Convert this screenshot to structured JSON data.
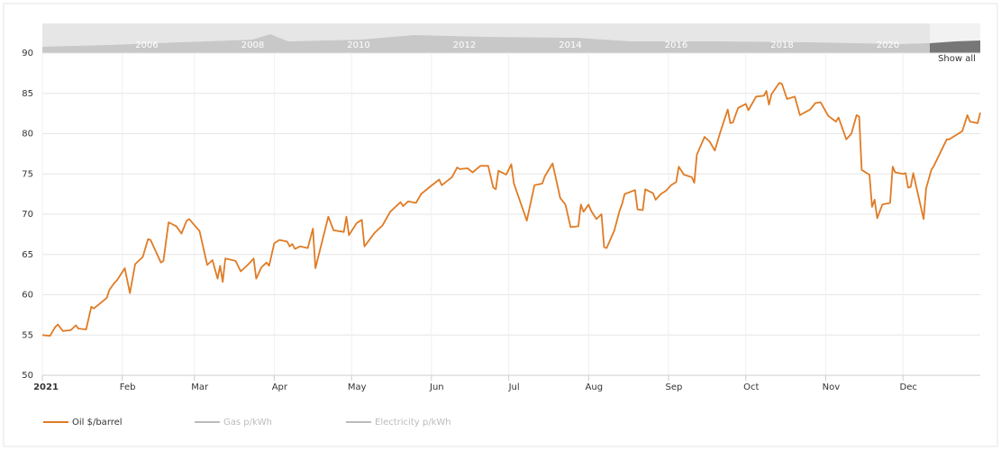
{
  "chart_data": {
    "type": "line",
    "navigator": {
      "labels": [
        "2006",
        "2008",
        "2010",
        "2012",
        "2014",
        "2016",
        "2018",
        "2020"
      ],
      "button": "Show all"
    },
    "xlim": [
      0,
      364
    ],
    "xticks": [
      {
        "value": 0,
        "label": "2021"
      },
      {
        "value": 31,
        "label": "Feb"
      },
      {
        "value": 59,
        "label": "Mar"
      },
      {
        "value": 90,
        "label": "Apr"
      },
      {
        "value": 120,
        "label": "May"
      },
      {
        "value": 151,
        "label": "Jun"
      },
      {
        "value": 181,
        "label": "Jul"
      },
      {
        "value": 212,
        "label": "Aug"
      },
      {
        "value": 243,
        "label": "Sep"
      },
      {
        "value": 273,
        "label": "Oct"
      },
      {
        "value": 304,
        "label": "Nov"
      },
      {
        "value": 334,
        "label": "Dec"
      }
    ],
    "ylim": [
      50,
      90
    ],
    "yticks": [
      50,
      55,
      60,
      65,
      70,
      75,
      80,
      85,
      90
    ],
    "grid": true,
    "x": [
      0,
      3,
      5,
      6,
      8,
      11,
      13,
      14,
      17,
      19,
      20,
      25,
      26,
      28,
      29,
      32,
      34,
      36,
      39,
      41,
      42,
      46,
      47,
      49,
      52,
      54,
      56,
      57,
      61,
      64,
      66,
      68,
      69,
      70,
      71,
      75,
      77,
      80,
      82,
      83,
      85,
      87,
      88,
      90,
      92,
      95,
      96,
      97,
      98,
      100,
      103,
      105,
      106,
      111,
      113,
      117,
      118,
      119,
      122,
      124,
      125,
      129,
      132,
      135,
      139,
      140,
      142,
      145,
      147,
      150,
      154,
      155,
      159,
      161,
      162,
      165,
      167,
      170,
      173,
      175,
      176,
      177,
      180,
      182,
      183,
      188,
      191,
      194,
      195,
      198,
      201,
      203,
      205,
      208,
      209,
      210,
      212,
      213,
      215,
      217,
      218,
      219,
      222,
      224,
      225,
      226,
      230,
      231,
      233,
      234,
      237,
      238,
      240,
      242,
      244,
      246,
      247,
      249,
      252,
      253,
      254,
      257,
      259,
      261,
      263,
      266,
      267,
      268,
      270,
      273,
      274,
      277,
      280,
      281,
      282,
      283,
      286,
      287,
      289,
      292,
      294,
      298,
      300,
      302,
      305,
      308,
      309,
      312,
      314,
      316,
      317,
      318,
      321,
      322,
      323,
      324,
      326,
      329,
      330,
      331,
      334,
      335,
      336,
      337,
      338,
      342,
      343,
      345,
      346,
      351,
      352,
      357,
      359,
      360,
      363,
      364
    ],
    "series": [
      {
        "name": "Oil $/barrel",
        "color": "#e07b24",
        "values": [
          55.0,
          54.9,
          56.0,
          56.3,
          55.5,
          55.6,
          56.2,
          55.8,
          55.7,
          58.5,
          58.3,
          59.6,
          60.6,
          61.5,
          61.8,
          63.3,
          60.2,
          63.8,
          64.7,
          66.9,
          66.8,
          64.0,
          64.2,
          69.0,
          68.5,
          67.6,
          69.2,
          69.4,
          67.9,
          63.7,
          64.3,
          62.0,
          63.6,
          61.6,
          64.5,
          64.2,
          62.9,
          63.8,
          64.5,
          62.0,
          63.4,
          64.0,
          63.6,
          66.4,
          66.8,
          66.6,
          66.0,
          66.3,
          65.7,
          66.0,
          65.8,
          68.2,
          63.3,
          69.7,
          68.0,
          67.8,
          69.7,
          67.4,
          68.9,
          69.3,
          66.0,
          67.7,
          68.6,
          70.3,
          71.5,
          71.0,
          71.6,
          71.4,
          72.5,
          73.3,
          74.3,
          73.6,
          74.6,
          75.8,
          75.6,
          75.7,
          75.2,
          76.0,
          76.0,
          73.3,
          73.1,
          75.4,
          74.9,
          76.2,
          73.8,
          69.2,
          73.6,
          73.8,
          74.7,
          76.3,
          72.0,
          71.2,
          68.4,
          68.5,
          71.2,
          70.3,
          71.2,
          70.4,
          69.4,
          70.0,
          65.9,
          65.8,
          68.0,
          70.4,
          71.3,
          72.5,
          73.0,
          70.6,
          70.5,
          73.1,
          72.6,
          71.8,
          72.5,
          72.9,
          73.6,
          74.0,
          75.9,
          74.9,
          74.6,
          73.9,
          77.4,
          79.6,
          79.0,
          77.9,
          80.1,
          83.0,
          81.3,
          81.4,
          83.2,
          83.7,
          82.9,
          84.6,
          84.7,
          85.3,
          83.6,
          84.9,
          86.3,
          86.2,
          84.3,
          84.6,
          82.3,
          83.0,
          83.8,
          83.9,
          82.2,
          81.5,
          82.0,
          79.3,
          80.0,
          82.3,
          82.1,
          75.5,
          74.9,
          70.9,
          71.8,
          69.5,
          71.2,
          71.4,
          75.9,
          75.2,
          75.0,
          75.1,
          73.3,
          73.4,
          75.1,
          69.4,
          73.2,
          75.5,
          76.0,
          79.3,
          79.3,
          80.3,
          82.3,
          81.5,
          81.3,
          82.6
        ]
      }
    ],
    "hidden_series": [
      {
        "name": "Gas p/kWh",
        "color": "#bbbbbb"
      },
      {
        "name": "Electricity p/kWh",
        "color": "#bbbbbb"
      }
    ]
  }
}
